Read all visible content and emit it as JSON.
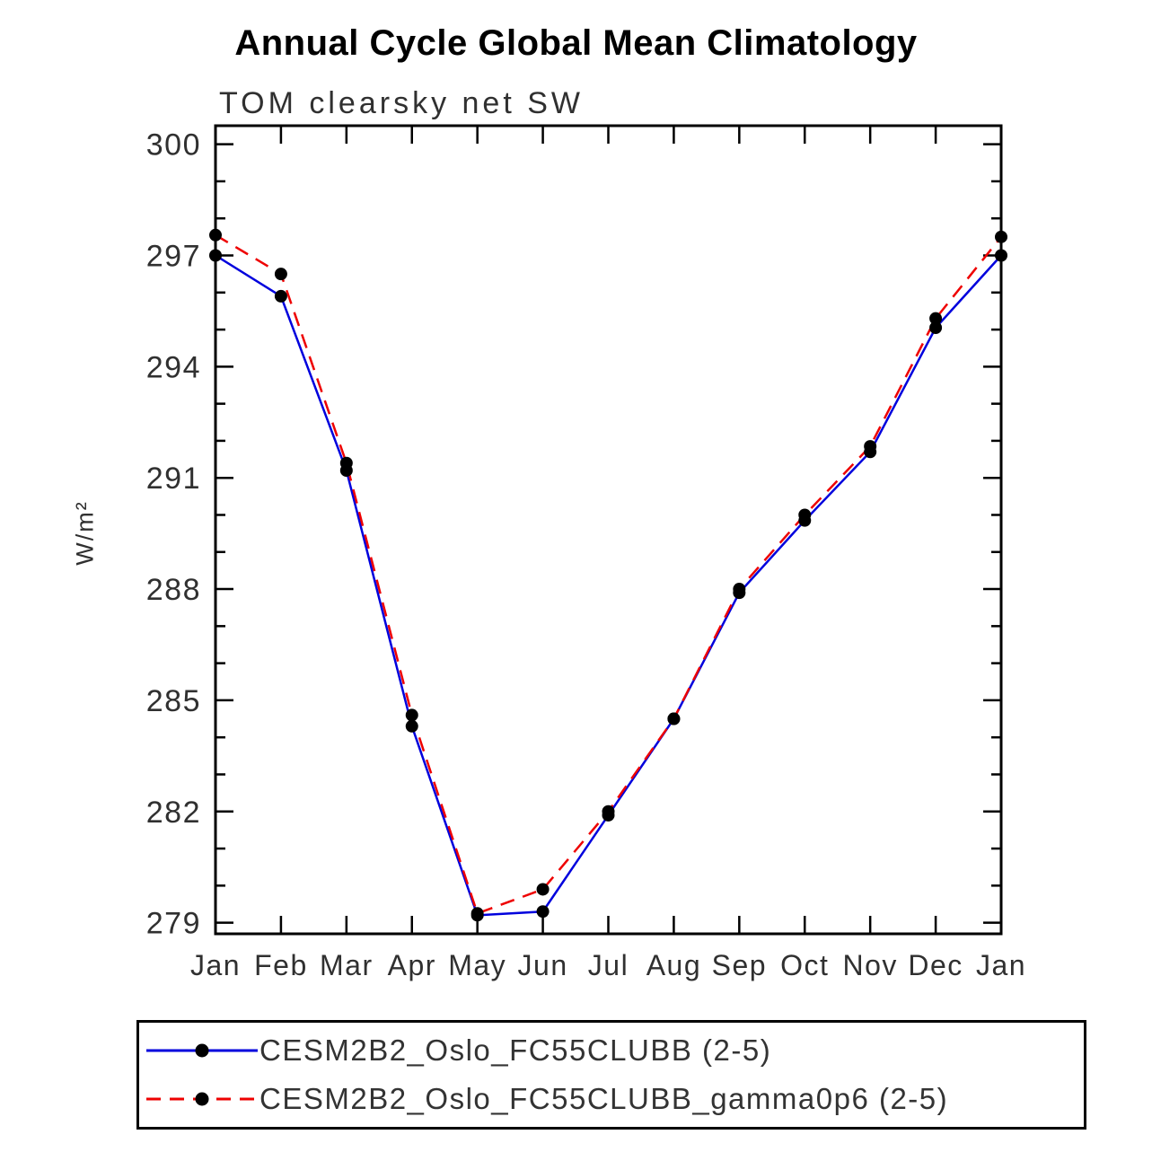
{
  "title": "Annual Cycle Global Mean Climatology",
  "subtitle": "TOM clearsky net SW",
  "ylabel": "W/m²",
  "chart_data": {
    "type": "line",
    "title": "Annual Cycle Global Mean Climatology",
    "subtitle": "TOM clearsky net SW",
    "ylabel": "W/m²",
    "categories": [
      "Jan",
      "Feb",
      "Mar",
      "Apr",
      "May",
      "Jun",
      "Jul",
      "Aug",
      "Sep",
      "Oct",
      "Nov",
      "Dec",
      "Jan"
    ],
    "series": [
      {
        "name": "CESM2B2_Oslo_FC55CLUBB (2-5)",
        "color": "#0000dd",
        "style": "solid",
        "values": [
          297.0,
          295.9,
          291.2,
          284.3,
          279.2,
          279.3,
          281.9,
          284.5,
          287.9,
          289.85,
          291.7,
          295.05,
          297.0
        ]
      },
      {
        "name": "CESM2B2_Oslo_FC55CLUBB_gamma0p6 (2-5)",
        "color": "#ee0000",
        "style": "dashed",
        "values": [
          297.55,
          296.5,
          291.4,
          284.6,
          279.25,
          279.9,
          282.0,
          284.5,
          288.0,
          290.0,
          291.85,
          295.3,
          297.5
        ]
      }
    ],
    "yticks": [
      279,
      282,
      285,
      288,
      291,
      294,
      297,
      300
    ],
    "ytick_minor_step": 1,
    "ylim": [
      278.7,
      300.5
    ],
    "marker_color": "#000000",
    "grid": "off",
    "legend_position": "bottom"
  }
}
